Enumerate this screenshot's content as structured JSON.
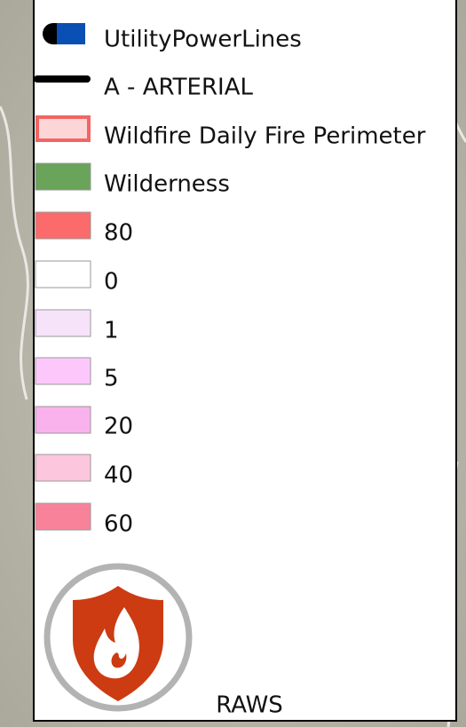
{
  "legend": {
    "items": [
      {
        "label": "UtilityPowerLines"
      },
      {
        "label": "A - ARTERIAL"
      },
      {
        "label": "Wildfire Daily Fire Perimeter"
      },
      {
        "label": "Wilderness"
      },
      {
        "label": "80"
      },
      {
        "label": "0"
      },
      {
        "label": "1"
      },
      {
        "label": "5"
      },
      {
        "label": "20"
      },
      {
        "label": "40"
      },
      {
        "label": "60"
      }
    ],
    "icon_label": "RAWS"
  }
}
